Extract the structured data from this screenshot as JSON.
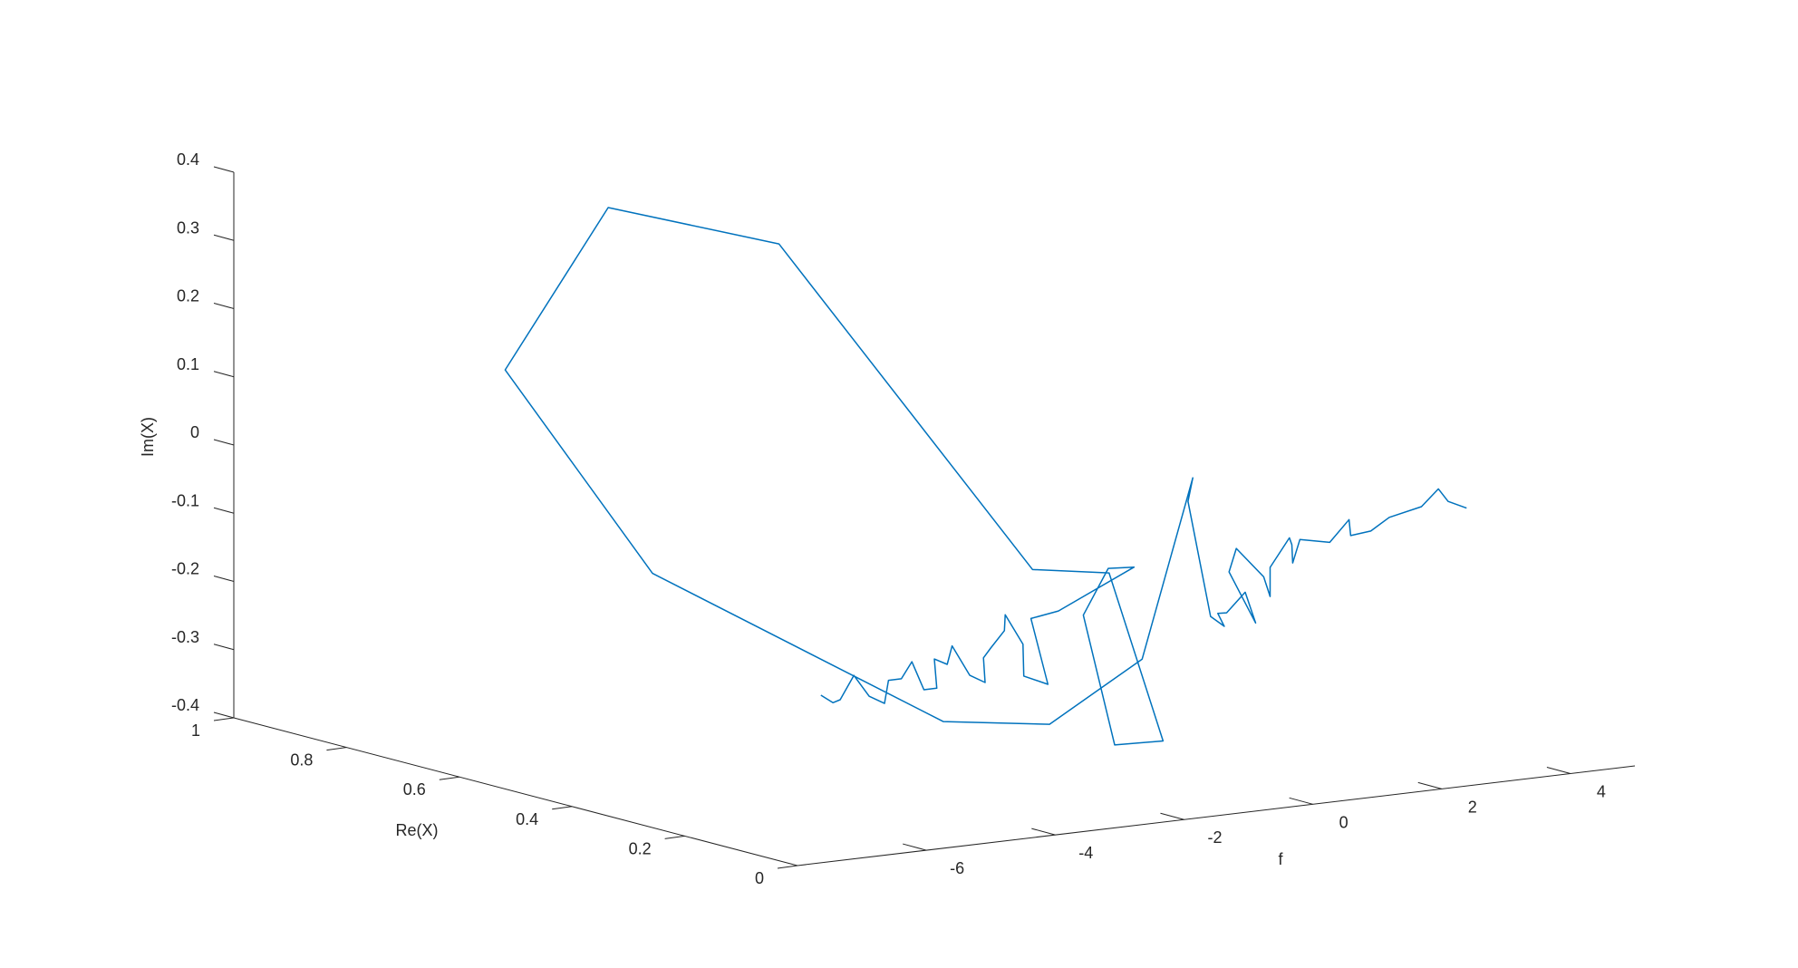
{
  "chart_data": {
    "type": "line",
    "projection": "3d",
    "title": "",
    "xlabel": "f",
    "ylabel": "Re(X)",
    "zlabel": "Im(X)",
    "xlim": [
      -8,
      5
    ],
    "ylim": [
      0,
      1
    ],
    "zlim": [
      -0.4,
      0.4
    ],
    "x_ticks": [
      "-6",
      "-4",
      "-2",
      "0",
      "2",
      "4"
    ],
    "y_ticks": [
      "0",
      "0.2",
      "0.4",
      "0.6",
      "0.8",
      "1"
    ],
    "z_ticks": [
      "-0.4",
      "-0.3",
      "-0.2",
      "-0.1",
      "0",
      "0.1",
      "0.2",
      "0.3",
      "0.4"
    ],
    "grid": false,
    "legend": "none",
    "color": "#0072BD",
    "series": [
      {
        "points": [
          [
            -7.2,
            0.05,
            -0.17
          ],
          [
            -7.1,
            0.04,
            -0.18
          ],
          [
            -6.9,
            0.05,
            -0.18
          ],
          [
            -6.6,
            0.06,
            -0.15
          ],
          [
            -6.45,
            0.05,
            -0.18
          ],
          [
            -6.3,
            0.04,
            -0.19
          ],
          [
            -6.15,
            0.05,
            -0.16
          ],
          [
            -5.95,
            0.05,
            -0.16
          ],
          [
            -5.7,
            0.06,
            -0.14
          ],
          [
            -5.6,
            0.05,
            -0.18
          ],
          [
            -5.4,
            0.05,
            -0.18
          ],
          [
            -5.35,
            0.06,
            -0.14
          ],
          [
            -5.15,
            0.06,
            -0.15
          ],
          [
            -4.9,
            0.08,
            -0.13
          ],
          [
            -4.8,
            0.06,
            -0.17
          ],
          [
            -4.65,
            0.05,
            -0.18
          ],
          [
            -4.5,
            0.07,
            -0.15
          ],
          [
            -4.3,
            0.08,
            -0.14
          ],
          [
            -4.0,
            0.09,
            -0.12
          ],
          [
            -3.9,
            0.1,
            -0.1
          ],
          [
            -3.8,
            0.08,
            -0.14
          ],
          [
            -3.7,
            0.09,
            -0.19
          ],
          [
            -3.5,
            0.07,
            -0.2
          ],
          [
            -3.5,
            0.1,
            -0.11
          ],
          [
            -2.9,
            0.12,
            -0.11
          ],
          [
            -2.25,
            0.06,
            -0.04
          ],
          [
            -2.3,
            0.1,
            -0.05
          ],
          [
            -2.25,
            0.15,
            -0.13
          ],
          [
            -2.2,
            0.1,
            -0.31
          ],
          [
            -1.8,
            0.06,
            -0.3
          ],
          [
            -2.2,
            0.11,
            -0.06
          ],
          [
            -2.6,
            0.2,
            -0.07
          ],
          [
            -2.6,
            0.65,
            0.31
          ],
          [
            -3.5,
            0.85,
            0.33
          ],
          [
            -5.1,
            0.85,
            0.11
          ],
          [
            -5.7,
            0.52,
            -0.11
          ],
          [
            -5.3,
            0.05,
            -0.23
          ],
          [
            -4.0,
            0.01,
            -0.24
          ],
          [
            -2.3,
            0.04,
            -0.17
          ],
          [
            -1.6,
            0.03,
            0.09
          ],
          [
            -1.5,
            0.05,
            0.05
          ],
          [
            -1.5,
            0.01,
            -0.11
          ],
          [
            -1.2,
            0.02,
            -0.13
          ],
          [
            -1.3,
            0.02,
            -0.11
          ],
          [
            -0.9,
            0.05,
            -0.12
          ],
          [
            -0.7,
            0.04,
            -0.09
          ],
          [
            -0.45,
            0.05,
            -0.14
          ],
          [
            -0.6,
            0.08,
            -0.07
          ],
          [
            -0.4,
            0.09,
            -0.04
          ],
          [
            -0.15,
            0.07,
            -0.08
          ],
          [
            -0.05,
            0.07,
            -0.11
          ],
          [
            0.3,
            0.11,
            -0.08
          ],
          [
            0.6,
            0.11,
            -0.04
          ],
          [
            0.9,
            0.14,
            -0.06
          ],
          [
            1.0,
            0.15,
            -0.09
          ],
          [
            1.2,
            0.16,
            -0.06
          ],
          [
            1.4,
            0.13,
            -0.06
          ],
          [
            1.7,
            0.13,
            -0.03
          ],
          [
            1.9,
            0.15,
            -0.06
          ],
          [
            2.3,
            0.16,
            -0.06
          ],
          [
            2.5,
            0.15,
            -0.04
          ],
          [
            3.0,
            0.15,
            -0.03
          ],
          [
            3.35,
            0.16,
            -0.01
          ],
          [
            3.5,
            0.16,
            -0.03
          ],
          [
            3.7,
            0.15,
            -0.04
          ]
        ]
      }
    ]
  }
}
